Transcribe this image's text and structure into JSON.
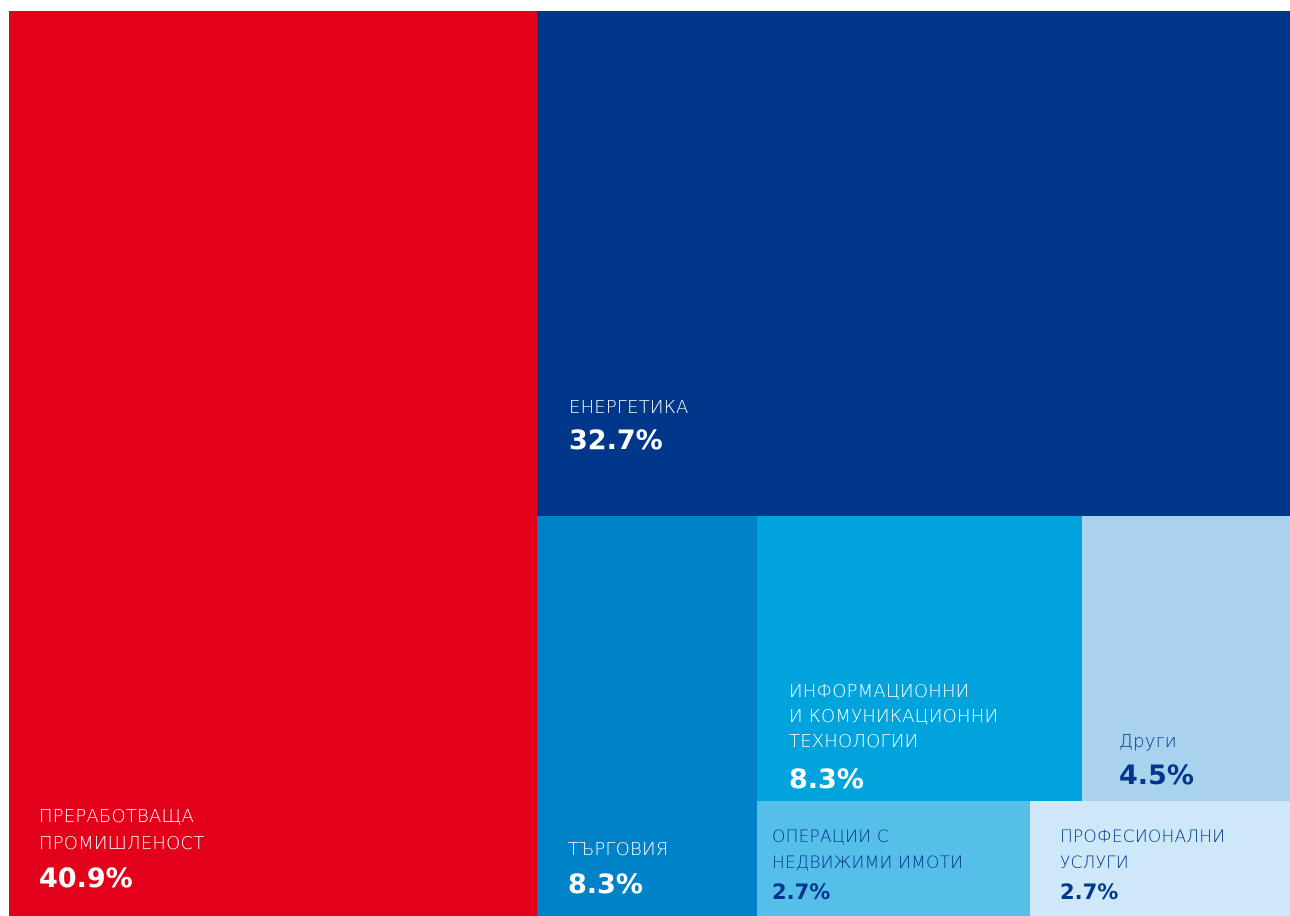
{
  "chart_data": {
    "type": "treemap",
    "items": [
      {
        "name": "ПРЕРАБОТВАЩА\nПРОМИШЛЕНОСТ",
        "value": 40.9,
        "value_label": "40.9%",
        "color": "#e2001a",
        "text_color": "#ffffff"
      },
      {
        "name": "ЕНЕРГЕТИКА",
        "value": 32.7,
        "value_label": "32.7%",
        "color": "#00378b",
        "text_color": "#ffffff"
      },
      {
        "name": "ТЪРГОВИЯ",
        "value": 8.3,
        "value_label": "8.3%",
        "color": "#0082c8",
        "text_color": "#ffffff"
      },
      {
        "name": "ИНФОРМАЦИОННИ\nИ КОМУНИКАЦИОННИ\nТЕХНОЛОГИИ",
        "value": 8.3,
        "value_label": "8.3%",
        "color": "#00a3dc",
        "text_color": "#ffffff"
      },
      {
        "name": "Други",
        "value": 4.5,
        "value_label": "4.5%",
        "color": "#a8d2ed",
        "text_color": "#00378b"
      },
      {
        "name": "ОПЕРАЦИИ С\nНЕДВИЖИМИ ИМОТИ",
        "value": 2.7,
        "value_label": "2.7%",
        "color": "#55bfea",
        "text_color": "#00378b"
      },
      {
        "name": "ПРОФЕСИОНАЛНИ\nУСЛУГИ",
        "value": 2.7,
        "value_label": "2.7%",
        "color": "#cfe8f9",
        "text_color": "#00378b"
      }
    ]
  }
}
